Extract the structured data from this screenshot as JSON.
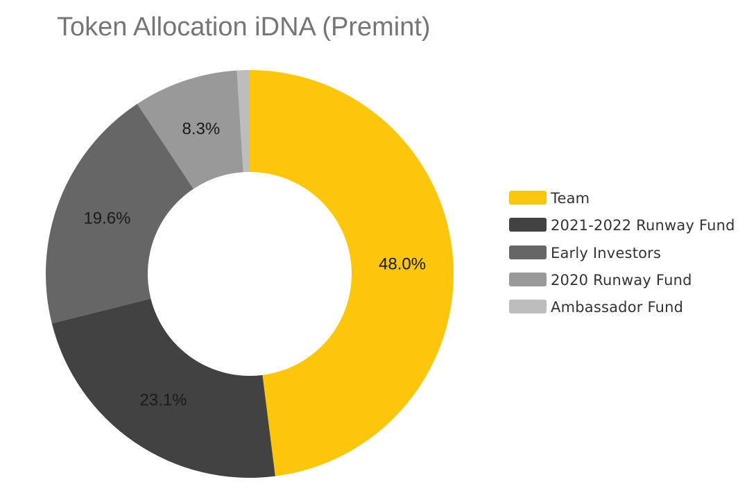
{
  "chart_data": {
    "type": "pie",
    "title": "Token Allocation iDNA (Premint)",
    "categories": [
      "Team",
      "2021-2022 Runway Fund",
      "Early Investors",
      "2020 Runway Fund",
      "Ambassador Fund"
    ],
    "values": [
      48.0,
      23.1,
      19.6,
      8.3,
      1.0
    ],
    "data_labels": [
      "48.0%",
      "23.1%",
      "19.6%",
      "8.3%",
      ""
    ],
    "colors": [
      "#FCC70A",
      "#424242",
      "#666666",
      "#999999",
      "#BDBDBD"
    ],
    "legend_position": "right",
    "donut": true
  }
}
